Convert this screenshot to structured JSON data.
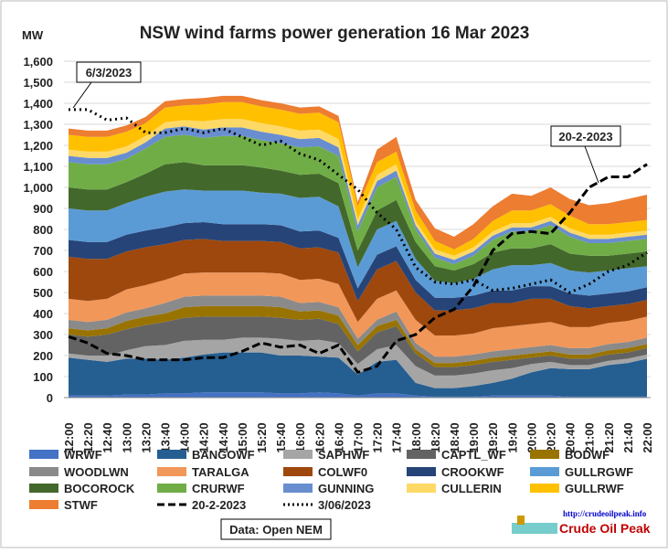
{
  "chart_data": {
    "type": "area",
    "stacked": true,
    "title": "NSW wind farms power generation 16 Mar 2023",
    "y_label": "MW",
    "categories": [
      "12:00",
      "12:20",
      "12:40",
      "13:00",
      "13:20",
      "13:40",
      "14:00",
      "14:20",
      "14:40",
      "15:00",
      "15:20",
      "15:40",
      "16:00",
      "16:20",
      "16:40",
      "17:00",
      "17:20",
      "17:40",
      "18:00",
      "18:20",
      "18:40",
      "19:00",
      "19:20",
      "19:40",
      "20:00",
      "20:20",
      "20:40",
      "21:00",
      "21:20",
      "21:40",
      "22:00"
    ],
    "ylim": [
      0,
      1600
    ],
    "yticks": [
      0,
      100,
      200,
      300,
      400,
      500,
      600,
      700,
      800,
      900,
      {
        "value": 1000,
        "label": "1,000"
      },
      {
        "value": 1100,
        "label": "1,100"
      },
      {
        "value": 1200,
        "label": "1,200"
      },
      {
        "value": 1300,
        "label": "1,300"
      },
      {
        "value": 1400,
        "label": "1,400"
      },
      {
        "value": 1500,
        "label": "1,500"
      },
      {
        "value": 1600,
        "label": "1,600"
      }
    ],
    "grid": true,
    "series": [
      {
        "name": "WRWF",
        "color": "#4472c4",
        "values": [
          10,
          10,
          10,
          15,
          15,
          20,
          20,
          25,
          25,
          25,
          25,
          20,
          20,
          25,
          20,
          10,
          20,
          20,
          10,
          5,
          5,
          5,
          10,
          10,
          10,
          10,
          5,
          5,
          5,
          5,
          5
        ]
      },
      {
        "name": "BANGOWF",
        "color": "#255e91",
        "values": [
          180,
          170,
          160,
          170,
          170,
          160,
          170,
          180,
          190,
          190,
          190,
          180,
          180,
          170,
          170,
          100,
          150,
          160,
          60,
          40,
          40,
          50,
          60,
          80,
          110,
          130,
          130,
          130,
          150,
          160,
          180
        ]
      },
      {
        "name": "SAPHWF",
        "color": "#a5a5a5",
        "values": [
          20,
          20,
          30,
          40,
          60,
          70,
          80,
          70,
          60,
          70,
          70,
          80,
          70,
          80,
          70,
          50,
          60,
          70,
          80,
          60,
          60,
          60,
          60,
          50,
          40,
          30,
          20,
          20,
          20,
          20,
          20
        ]
      },
      {
        "name": "CAPTL_WF",
        "color": "#636363",
        "values": [
          90,
          90,
          100,
          100,
          100,
          110,
          110,
          110,
          110,
          100,
          100,
          100,
          100,
          100,
          90,
          60,
          80,
          90,
          60,
          40,
          40,
          40,
          40,
          40,
          30,
          30,
          30,
          30,
          30,
          30,
          30
        ]
      },
      {
        "name": "BODWF",
        "color": "#997300",
        "values": [
          30,
          30,
          30,
          40,
          40,
          40,
          50,
          50,
          50,
          50,
          50,
          50,
          40,
          40,
          40,
          30,
          30,
          30,
          20,
          20,
          20,
          20,
          20,
          20,
          20,
          20,
          20,
          20,
          20,
          20,
          20
        ]
      },
      {
        "name": "WOODLWN",
        "color": "#8a8a8a",
        "values": [
          40,
          40,
          40,
          40,
          40,
          50,
          50,
          50,
          50,
          50,
          50,
          50,
          40,
          40,
          40,
          30,
          30,
          40,
          30,
          30,
          30,
          30,
          30,
          30,
          30,
          30,
          30,
          30,
          30,
          30,
          30
        ]
      },
      {
        "name": "TARALGA",
        "color": "#f1975a",
        "values": [
          100,
          100,
          100,
          110,
          110,
          110,
          110,
          110,
          110,
          110,
          110,
          110,
          110,
          110,
          110,
          80,
          100,
          100,
          110,
          100,
          100,
          100,
          110,
          110,
          110,
          110,
          100,
          100,
          100,
          100,
          100
        ]
      },
      {
        "name": "COLWF0",
        "color": "#9e480e",
        "values": [
          200,
          200,
          190,
          180,
          180,
          170,
          160,
          160,
          150,
          150,
          150,
          150,
          150,
          150,
          150,
          100,
          140,
          140,
          130,
          120,
          120,
          120,
          120,
          110,
          120,
          110,
          100,
          90,
          80,
          80,
          80
        ]
      },
      {
        "name": "CROOKWF",
        "color": "#264478",
        "values": [
          80,
          80,
          80,
          80,
          80,
          80,
          80,
          80,
          80,
          80,
          80,
          80,
          80,
          80,
          70,
          60,
          70,
          70,
          60,
          60,
          60,
          60,
          60,
          60,
          60,
          60,
          60,
          60,
          60,
          60,
          60
        ]
      },
      {
        "name": "GULLRGWF",
        "color": "#5b9bd5",
        "values": [
          150,
          150,
          150,
          150,
          160,
          170,
          160,
          150,
          160,
          160,
          150,
          150,
          160,
          160,
          150,
          100,
          120,
          120,
          100,
          80,
          70,
          80,
          100,
          120,
          100,
          110,
          110,
          110,
          110,
          110,
          100
        ]
      },
      {
        "name": "BOCOROCK",
        "color": "#43682b",
        "values": [
          100,
          100,
          100,
          100,
          110,
          130,
          130,
          120,
          120,
          120,
          120,
          110,
          110,
          110,
          110,
          80,
          90,
          100,
          80,
          70,
          60,
          70,
          80,
          80,
          80,
          90,
          80,
          80,
          70,
          70,
          70
        ]
      },
      {
        "name": "CRURWF",
        "color": "#70ad47",
        "values": [
          120,
          120,
          120,
          110,
          120,
          130,
          130,
          130,
          140,
          140,
          130,
          130,
          130,
          130,
          130,
          90,
          110,
          110,
          60,
          40,
          30,
          40,
          60,
          80,
          80,
          90,
          80,
          60,
          60,
          60,
          60
        ]
      },
      {
        "name": "GUNNING",
        "color": "#698ed0",
        "values": [
          30,
          30,
          30,
          30,
          30,
          40,
          40,
          40,
          40,
          40,
          40,
          40,
          40,
          40,
          40,
          30,
          30,
          30,
          20,
          20,
          20,
          20,
          20,
          20,
          20,
          20,
          20,
          20,
          20,
          20,
          20
        ]
      },
      {
        "name": "CULLERIN",
        "color": "#ffd966",
        "values": [
          30,
          30,
          30,
          30,
          30,
          30,
          30,
          40,
          40,
          40,
          40,
          40,
          40,
          40,
          40,
          30,
          30,
          30,
          20,
          20,
          20,
          20,
          20,
          20,
          20,
          20,
          20,
          20,
          20,
          20,
          20
        ]
      },
      {
        "name": "GULLRWF",
        "color": "#ffc000",
        "values": [
          70,
          70,
          70,
          70,
          60,
          70,
          70,
          80,
          80,
          80,
          80,
          80,
          80,
          80,
          80,
          60,
          60,
          60,
          50,
          40,
          30,
          40,
          50,
          60,
          60,
          60,
          60,
          50,
          50,
          50,
          50
        ]
      },
      {
        "name": "STWF",
        "color": "#ed7d31",
        "values": [
          30,
          30,
          30,
          30,
          30,
          30,
          30,
          30,
          30,
          30,
          30,
          30,
          30,
          30,
          30,
          20,
          60,
          70,
          50,
          60,
          60,
          70,
          70,
          80,
          70,
          80,
          80,
          90,
          100,
          110,
          120
        ]
      },
      {
        "name": "20-2-2023",
        "type": "line",
        "dash": "dashed",
        "color": "#000000",
        "values": [
          290,
          260,
          210,
          200,
          180,
          180,
          180,
          190,
          190,
          220,
          260,
          240,
          250,
          210,
          250,
          120,
          150,
          270,
          300,
          380,
          420,
          530,
          700,
          780,
          790,
          780,
          880,
          1000,
          1050,
          1050,
          1110
        ]
      },
      {
        "name": "3/06/2023",
        "type": "line",
        "dash": "dotted",
        "color": "#000000",
        "values": [
          1370,
          1370,
          1320,
          1330,
          1260,
          1260,
          1280,
          1260,
          1280,
          1240,
          1200,
          1220,
          1160,
          1130,
          1060,
          990,
          880,
          800,
          620,
          550,
          540,
          560,
          510,
          520,
          540,
          560,
          500,
          540,
          600,
          630,
          690
        ]
      }
    ],
    "annotations": [
      "6/3/2023",
      "20-2-2023"
    ],
    "source": "Data: Open NEM",
    "logo_url": "http://crudeoilpeak.info",
    "logo_name": "Crude Oil Peak"
  }
}
